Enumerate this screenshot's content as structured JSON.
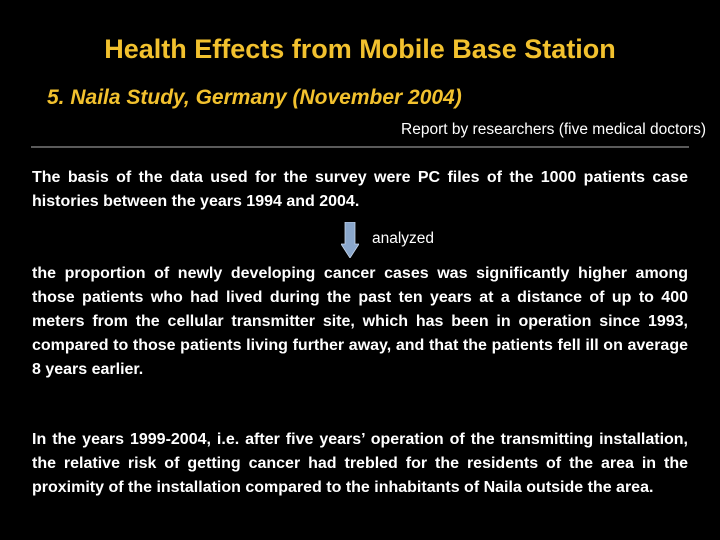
{
  "slide": {
    "title": "Health Effects from Mobile Base Station",
    "subtitle": "5. Naila Study, Germany (November 2004)",
    "report_note": "Report by researchers (five medical doctors)",
    "paragraph_basis": "The basis of the data used for the survey were PC files of the 1000 patients case histories between the years 1994 and 2004.",
    "arrow_label": "analyzed",
    "paragraph_finding": "the proportion of newly developing cancer cases was significantly higher among those patients who had lived during the past ten years at a distance of up to 400 meters from the cellular transmitter site, which has been in operation since 1993, compared to those patients living further away, and that the patients fell ill on average 8 years earlier.",
    "paragraph_risk": "In the years 1999-2004, i.e. after five years’ operation of the transmitting installation, the relative risk of getting cancer had trebled for the residents of the area in the proximity of the installation compared to the inhabitants of Naila outside the area."
  },
  "colors": {
    "background": "#000000",
    "title": "#f2c12e",
    "body_text": "#ffffff",
    "arrow_fill": "#8aa7cc"
  },
  "icons": {
    "arrow": "down-arrow-icon"
  }
}
